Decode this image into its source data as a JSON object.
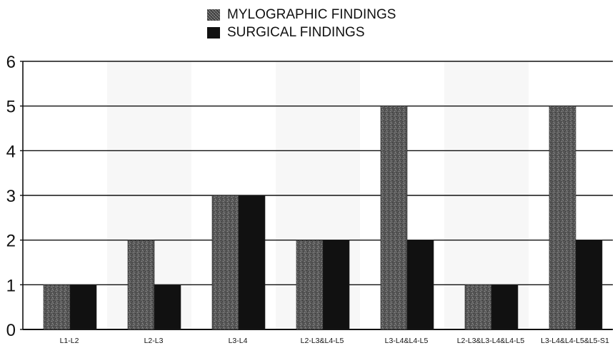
{
  "chart_data": {
    "type": "bar",
    "title": "",
    "xlabel": "",
    "ylabel": "",
    "ylim": [
      0,
      6
    ],
    "yticks": [
      "0",
      "1",
      "2",
      "3",
      "4",
      "5",
      "6"
    ],
    "grid": true,
    "legend_position": "top-center",
    "categories": [
      "L1-L2",
      "L2-L3",
      "L3-L4",
      "L2-L3&L4-L5",
      "L3-L4&L4-L5",
      "L2-L3&L3-L4&L4-L5",
      "L3-L4&L4-L5&L5-S1"
    ],
    "series": [
      {
        "name": "MYLOGRAPHIC FINDINGS",
        "values": [
          1,
          2,
          3,
          2,
          5,
          1,
          5
        ],
        "color": "#555555"
      },
      {
        "name": "SURGICAL FINDINGS",
        "values": [
          1,
          1,
          3,
          2,
          2,
          1,
          2
        ],
        "color": "#111111"
      }
    ]
  }
}
